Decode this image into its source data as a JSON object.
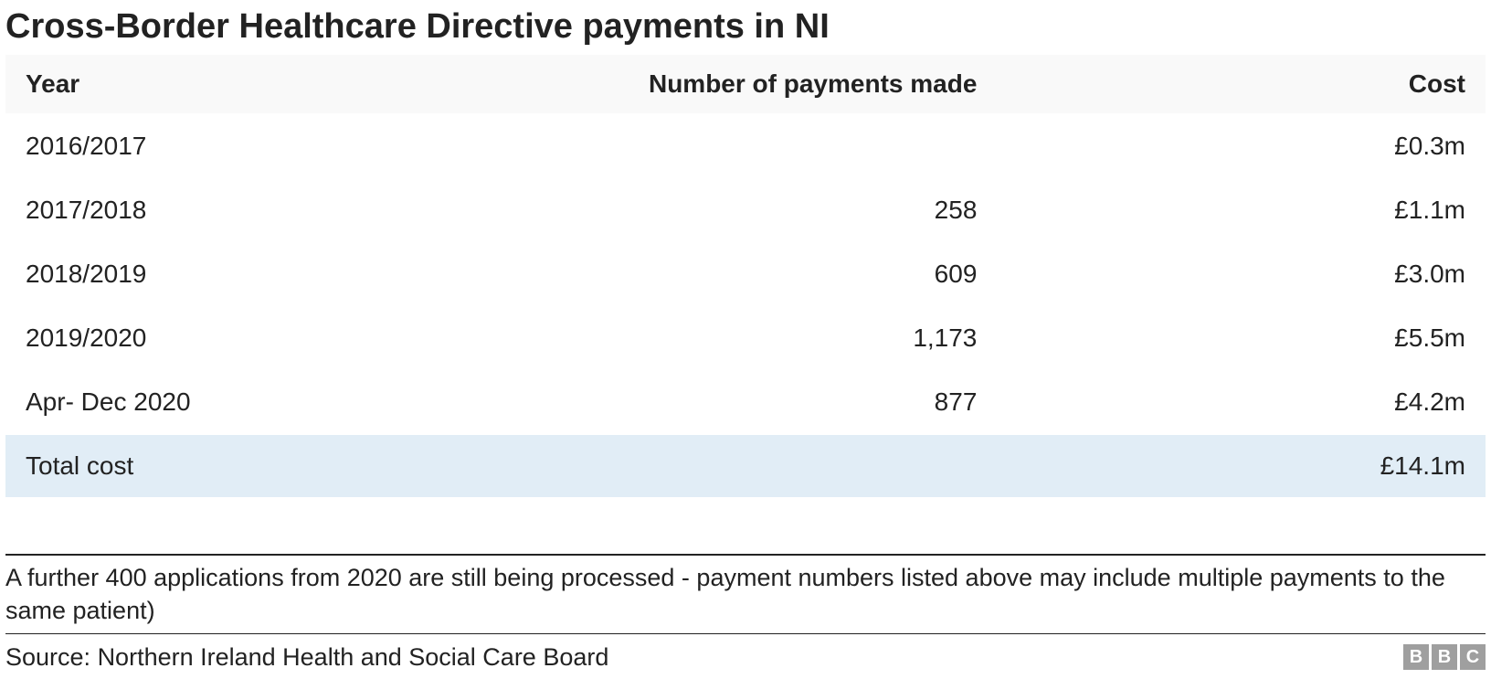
{
  "title": "Cross-Border Healthcare Directive payments in NI",
  "table": {
    "type": "table",
    "columns": [
      {
        "label": "Year",
        "align": "left"
      },
      {
        "label": "Number of payments made",
        "align": "right"
      },
      {
        "label": "Cost",
        "align": "right"
      }
    ],
    "rows": [
      {
        "year": "2016/2017",
        "num": "",
        "cost": "£0.3m",
        "highlight": false
      },
      {
        "year": "2017/2018",
        "num": "258",
        "cost": "£1.1m",
        "highlight": false
      },
      {
        "year": "2018/2019",
        "num": "609",
        "cost": "£3.0m",
        "highlight": false
      },
      {
        "year": "2019/2020",
        "num": "1,173",
        "cost": "£5.5m",
        "highlight": false
      },
      {
        "year": "Apr- Dec 2020",
        "num": "877",
        "cost": "£4.2m",
        "highlight": false
      },
      {
        "year": "Total cost",
        "num": "",
        "cost": "£14.1m",
        "highlight": true
      }
    ],
    "header_bg": "#f9f9f9",
    "row_bg": "#ffffff",
    "highlight_bg": "#e1edf6",
    "border_color": "#222222",
    "font_size_header": 28,
    "font_size_body": 28
  },
  "footnote": "A further 400 applications from 2020 are still being processed - payment numbers listed above may include multiple payments to the same patient)",
  "source_prefix": "Source: ",
  "source": "Northern Ireland Health and Social Care Board",
  "logo_letters": [
    "B",
    "B",
    "C"
  ],
  "colors": {
    "text": "#222222",
    "logo_bg": "#9f9f9f",
    "logo_fg": "#ffffff"
  }
}
